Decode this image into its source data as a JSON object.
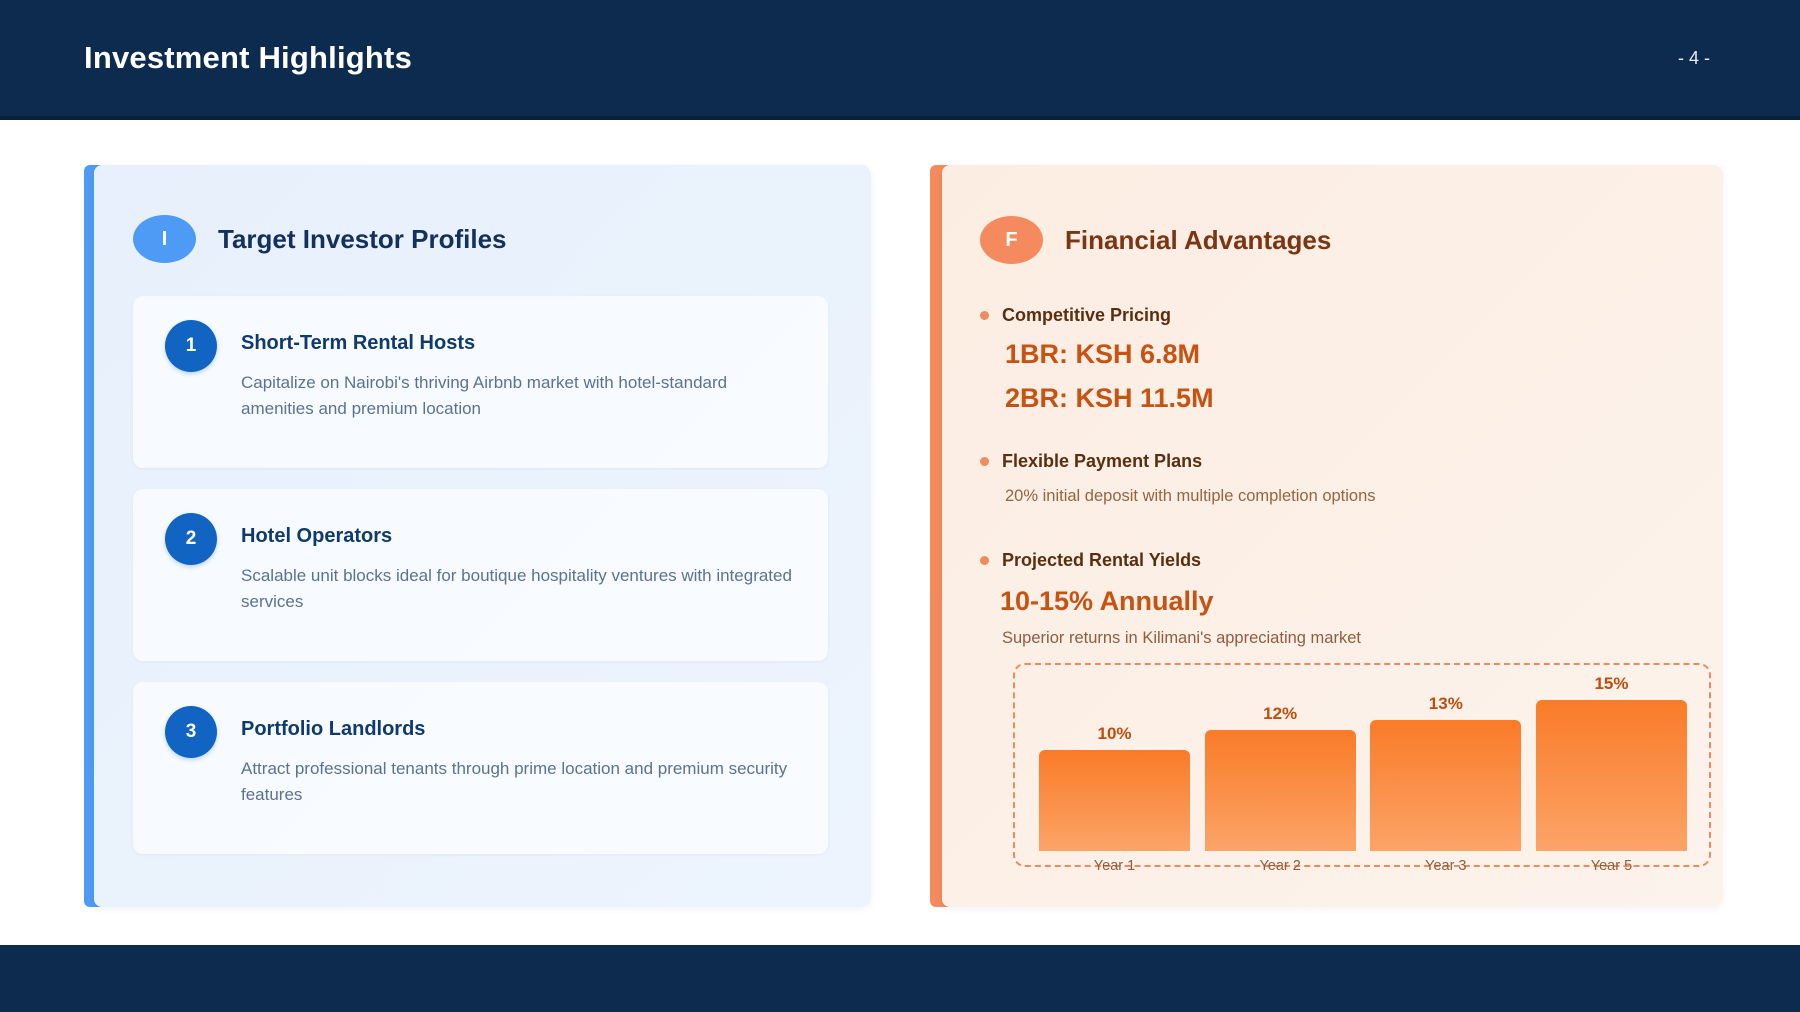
{
  "header": {
    "title": "Investment Highlights",
    "page_number": "- 4 -"
  },
  "colors": {
    "navy": "#0C2B4E",
    "left_accent": "#4D9BF5",
    "left_number_badge": "#1164C2",
    "left_heading": "#13305F",
    "left_body_text": "#5A7294",
    "right_accent": "#F48A5E",
    "right_heading": "#7C3511",
    "right_strong_orange": "#C65311",
    "right_body_text": "#96653F",
    "bar_gradient_top": "#FA7B28",
    "bar_gradient_bottom": "#FBA468",
    "bar_label": "#BF4D0D"
  },
  "left_panel": {
    "badge": "I",
    "title": "Target Investor Profiles",
    "items": [
      {
        "number": "1",
        "title": "Short-Term Rental Hosts",
        "description": "Capitalize on Nairobi's thriving Airbnb market with hotel-standard amenities and premium location"
      },
      {
        "number": "2",
        "title": "Hotel Operators",
        "description": "Scalable unit blocks ideal for boutique hospitality ventures with integrated services"
      },
      {
        "number": "3",
        "title": "Portfolio Landlords",
        "description": "Attract professional tenants through prime location and premium security features"
      }
    ]
  },
  "right_panel": {
    "badge": "F",
    "title": "Financial Advantages",
    "pricing": {
      "heading": "Competitive Pricing",
      "lines": [
        "1BR: KSH 6.8M",
        "2BR: KSH 11.5M"
      ]
    },
    "payment": {
      "heading": "Flexible Payment Plans",
      "detail": "20% initial deposit with multiple completion options"
    },
    "yields": {
      "heading": "Projected Rental Yields",
      "highlight": "10-15% Annually",
      "detail": "Superior returns in Kilimani's appreciating market"
    }
  },
  "chart_data": {
    "type": "bar",
    "categories": [
      "Year 1",
      "Year 2",
      "Year 3",
      "Year 5"
    ],
    "values": [
      10,
      12,
      13,
      15
    ],
    "labels": [
      "10%",
      "12%",
      "13%",
      "15%"
    ],
    "unit": "%",
    "title": "",
    "xlabel": "",
    "ylabel": "",
    "ylim": [
      0,
      15
    ],
    "grid": false,
    "legend": false
  }
}
